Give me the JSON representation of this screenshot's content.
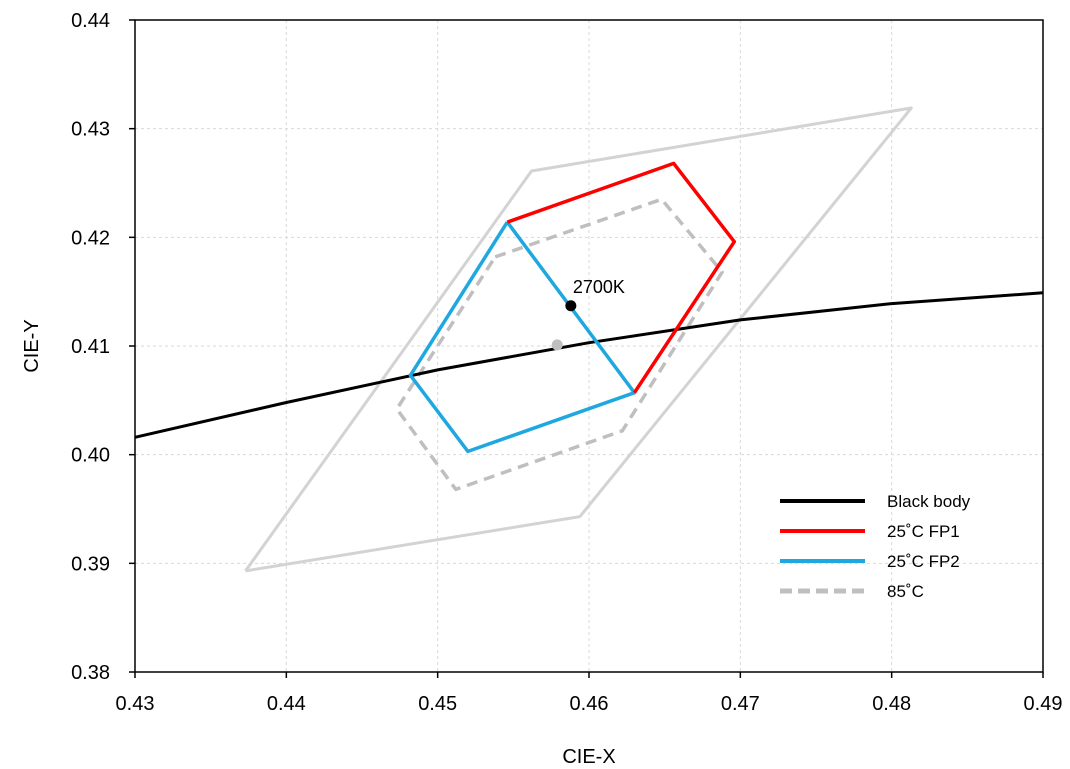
{
  "chart_data": {
    "type": "line",
    "xlabel": "CIE-X",
    "ylabel": "CIE-Y",
    "xlim": [
      0.43,
      0.49
    ],
    "ylim": [
      0.38,
      0.44
    ],
    "xticks": [
      "0.43",
      "0.44",
      "0.45",
      "0.46",
      "0.47",
      "0.48",
      "0.49"
    ],
    "yticks": [
      "0.38",
      "0.39",
      "0.40",
      "0.41",
      "0.42",
      "0.43",
      "0.44"
    ],
    "grid": true,
    "legend_position": "bottom-right",
    "series": [
      {
        "name": "Black body",
        "color": "#000000",
        "style": "solid",
        "points": [
          [
            0.43,
            0.4016
          ],
          [
            0.44,
            0.4048
          ],
          [
            0.45,
            0.4078
          ],
          [
            0.46,
            0.4103
          ],
          [
            0.47,
            0.4124
          ],
          [
            0.48,
            0.4139
          ],
          [
            0.49,
            0.4149
          ]
        ]
      },
      {
        "name": "25˚C FP1",
        "color": "#ff0000",
        "style": "solid",
        "points": [
          [
            0.4546,
            0.4214
          ],
          [
            0.4656,
            0.4268
          ],
          [
            0.4696,
            0.4196
          ],
          [
            0.463,
            0.4057
          ]
        ]
      },
      {
        "name": "25˚C FP2",
        "color": "#1fa7e0",
        "style": "solid",
        "points": [
          [
            0.4546,
            0.4214
          ],
          [
            0.463,
            0.4057
          ],
          [
            0.452,
            0.4003
          ],
          [
            0.4482,
            0.4073
          ],
          [
            0.4546,
            0.4214
          ]
        ]
      },
      {
        "name": "85˚C",
        "color": "#bfbfbf",
        "style": "dashed",
        "points": [
          [
            0.4538,
            0.4182
          ],
          [
            0.4648,
            0.4235
          ],
          [
            0.4688,
            0.4168
          ],
          [
            0.4622,
            0.4022
          ],
          [
            0.4512,
            0.3968
          ],
          [
            0.4473,
            0.4042
          ],
          [
            0.4538,
            0.4182
          ]
        ]
      }
    ],
    "outline": {
      "color": "#d3d3d3",
      "points": [
        [
          0.4373,
          0.3893
        ],
        [
          0.4562,
          0.4261
        ],
        [
          0.4813,
          0.4319
        ],
        [
          0.4594,
          0.3943
        ],
        [
          0.4373,
          0.3893
        ]
      ]
    },
    "annotations": [
      {
        "text": "2700K",
        "x": 0.4588,
        "y": 0.4137
      }
    ],
    "markers": [
      {
        "x": 0.4588,
        "y": 0.4137,
        "color": "#000000"
      },
      {
        "x": 0.4579,
        "y": 0.4101,
        "color": "#bfbfbf"
      }
    ]
  }
}
